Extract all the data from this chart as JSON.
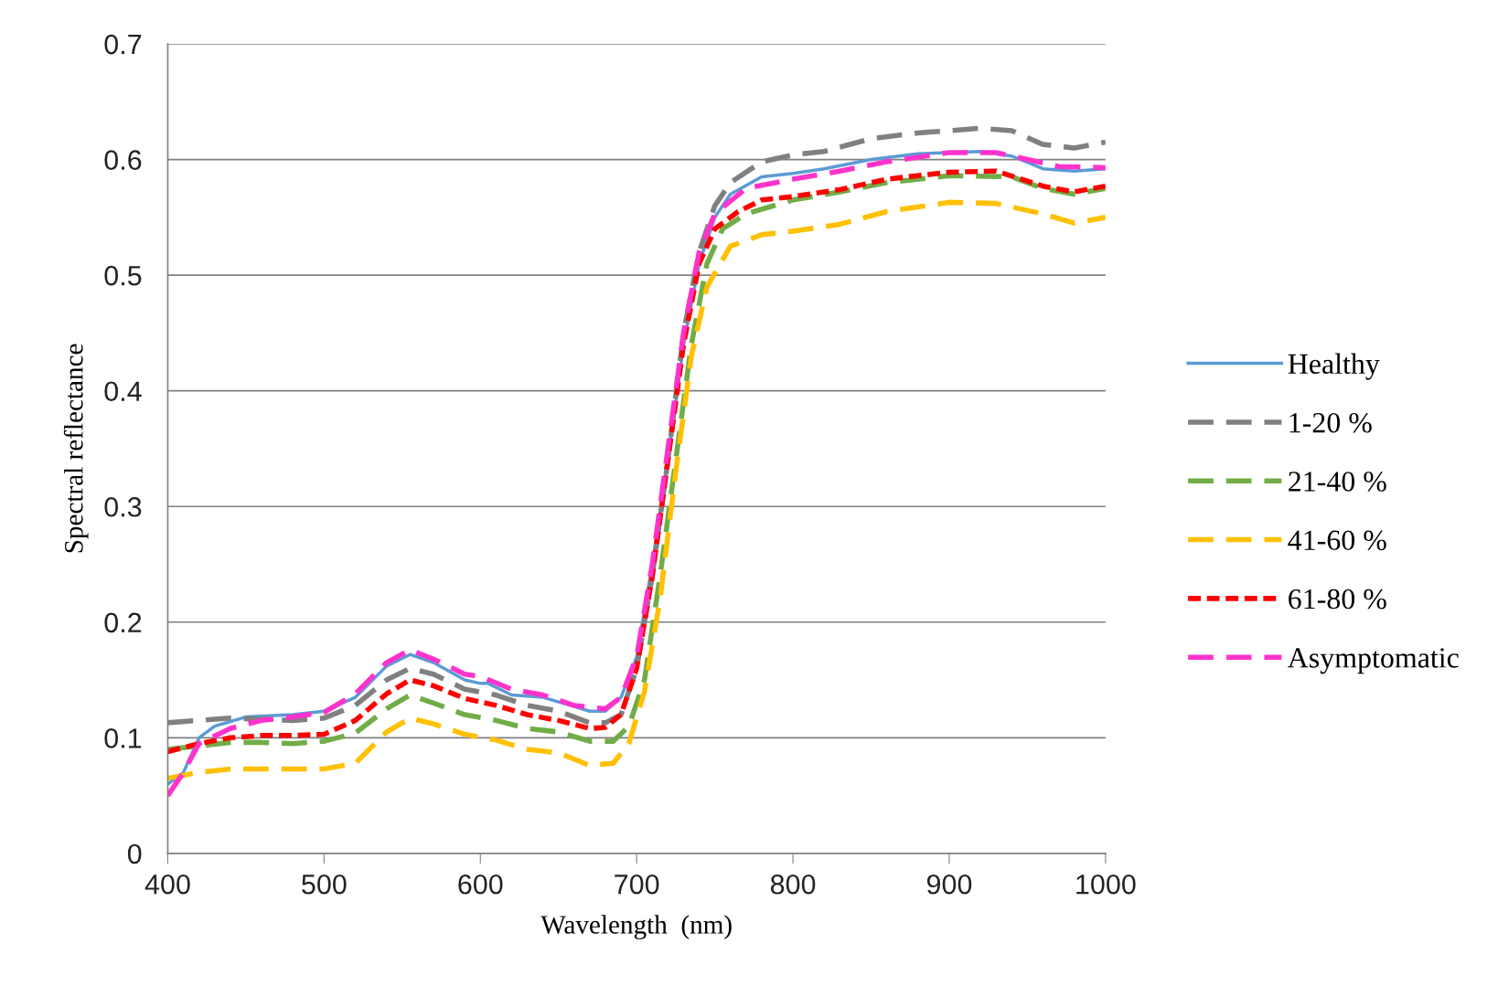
{
  "chart_data": {
    "type": "line",
    "xlabel": "Wavelength  (nm)",
    "ylabel": "Spectral reflectance",
    "xlim": [
      400,
      1000
    ],
    "xticks": [
      400,
      500,
      600,
      700,
      800,
      900,
      1000
    ],
    "ylim": [
      0,
      0.7
    ],
    "yticks": [
      0,
      0.1,
      0.2,
      0.3,
      0.4,
      0.5,
      0.6,
      0.7
    ],
    "grid": "y",
    "legend": "right",
    "marker": "none",
    "series": [
      {
        "name": "Healthy",
        "color": "#5b9bd5",
        "line_style": "solid",
        "x": [
          400,
          410,
          420,
          430,
          450,
          480,
          500,
          520,
          540,
          555,
          570,
          590,
          600,
          605,
          620,
          640,
          660,
          670,
          680,
          690,
          700,
          710,
          720,
          730,
          740,
          750,
          760,
          780,
          800,
          820,
          850,
          880,
          920,
          940,
          960,
          980,
          1000
        ],
        "values": [
          0.06,
          0.07,
          0.1,
          0.11,
          0.118,
          0.12,
          0.123,
          0.135,
          0.162,
          0.172,
          0.165,
          0.15,
          0.147,
          0.147,
          0.137,
          0.135,
          0.127,
          0.123,
          0.123,
          0.135,
          0.17,
          0.25,
          0.34,
          0.44,
          0.51,
          0.55,
          0.57,
          0.585,
          0.588,
          0.592,
          0.6,
          0.605,
          0.607,
          0.603,
          0.592,
          0.59,
          0.592
        ]
      },
      {
        "name": "1-20 %",
        "color": "#808080",
        "line_style": "dashed",
        "x": [
          400,
          420,
          440,
          460,
          480,
          500,
          520,
          540,
          555,
          570,
          590,
          610,
          630,
          650,
          670,
          680,
          690,
          700,
          710,
          720,
          730,
          740,
          750,
          760,
          780,
          800,
          820,
          850,
          880,
          920,
          940,
          960,
          980,
          1000
        ],
        "values": [
          0.113,
          0.115,
          0.117,
          0.116,
          0.115,
          0.117,
          0.128,
          0.15,
          0.16,
          0.155,
          0.142,
          0.137,
          0.128,
          0.123,
          0.113,
          0.113,
          0.12,
          0.16,
          0.24,
          0.34,
          0.45,
          0.52,
          0.56,
          0.58,
          0.598,
          0.604,
          0.607,
          0.618,
          0.623,
          0.627,
          0.625,
          0.613,
          0.61,
          0.615
        ]
      },
      {
        "name": "21-40 %",
        "color": "#70ad47",
        "line_style": "dashed",
        "x": [
          400,
          420,
          440,
          460,
          480,
          500,
          520,
          540,
          555,
          570,
          590,
          610,
          630,
          650,
          670,
          685,
          695,
          705,
          715,
          725,
          735,
          745,
          755,
          770,
          800,
          830,
          860,
          900,
          940,
          960,
          980,
          1000
        ],
        "values": [
          0.09,
          0.093,
          0.096,
          0.096,
          0.095,
          0.097,
          0.104,
          0.125,
          0.137,
          0.13,
          0.12,
          0.115,
          0.108,
          0.105,
          0.097,
          0.097,
          0.11,
          0.15,
          0.24,
          0.34,
          0.44,
          0.51,
          0.54,
          0.553,
          0.565,
          0.572,
          0.58,
          0.586,
          0.585,
          0.575,
          0.57,
          0.575
        ]
      },
      {
        "name": "41-60 %",
        "color": "#ffc000",
        "line_style": "dashed",
        "x": [
          400,
          420,
          440,
          460,
          480,
          500,
          520,
          540,
          555,
          570,
          590,
          610,
          630,
          650,
          670,
          685,
          695,
          705,
          715,
          725,
          735,
          745,
          760,
          780,
          800,
          830,
          860,
          900,
          930,
          960,
          980,
          1000
        ],
        "values": [
          0.065,
          0.07,
          0.073,
          0.073,
          0.073,
          0.073,
          0.078,
          0.105,
          0.117,
          0.112,
          0.103,
          0.098,
          0.09,
          0.087,
          0.076,
          0.078,
          0.095,
          0.14,
          0.22,
          0.33,
          0.43,
          0.49,
          0.525,
          0.535,
          0.538,
          0.544,
          0.555,
          0.563,
          0.562,
          0.553,
          0.545,
          0.55
        ]
      },
      {
        "name": "61-80 %",
        "color": "#ff0000",
        "line_style": "dotted",
        "x": [
          400,
          420,
          440,
          460,
          480,
          500,
          520,
          540,
          555,
          570,
          590,
          610,
          630,
          650,
          670,
          680,
          690,
          700,
          710,
          720,
          730,
          740,
          750,
          765,
          780,
          800,
          830,
          860,
          900,
          930,
          960,
          980,
          1000
        ],
        "values": [
          0.088,
          0.095,
          0.1,
          0.102,
          0.102,
          0.103,
          0.115,
          0.138,
          0.15,
          0.145,
          0.134,
          0.128,
          0.12,
          0.115,
          0.108,
          0.109,
          0.12,
          0.16,
          0.24,
          0.34,
          0.44,
          0.51,
          0.54,
          0.555,
          0.565,
          0.568,
          0.574,
          0.583,
          0.589,
          0.59,
          0.577,
          0.572,
          0.577
        ]
      },
      {
        "name": "Asymptomatic",
        "color": "#ff33cc",
        "line_style": "dashed",
        "x": [
          400,
          410,
          420,
          440,
          460,
          480,
          500,
          520,
          540,
          555,
          570,
          590,
          600,
          620,
          640,
          660,
          680,
          690,
          700,
          710,
          720,
          730,
          740,
          750,
          770,
          800,
          830,
          860,
          900,
          930,
          950,
          970,
          1000
        ],
        "values": [
          0.05,
          0.07,
          0.095,
          0.108,
          0.115,
          0.118,
          0.122,
          0.138,
          0.165,
          0.176,
          0.168,
          0.155,
          0.153,
          0.142,
          0.137,
          0.128,
          0.125,
          0.135,
          0.17,
          0.25,
          0.35,
          0.45,
          0.52,
          0.553,
          0.575,
          0.583,
          0.59,
          0.598,
          0.606,
          0.606,
          0.6,
          0.594,
          0.593
        ]
      }
    ]
  }
}
